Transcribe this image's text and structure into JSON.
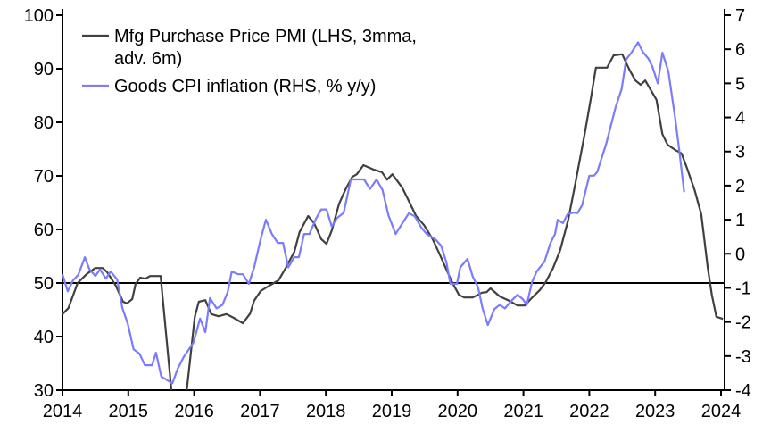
{
  "chart_data": {
    "type": "line",
    "title": "",
    "xlim": [
      2014,
      2024.2
    ],
    "x_ticks": [
      "2014",
      "2015",
      "2016",
      "2017",
      "2018",
      "2019",
      "2020",
      "2021",
      "2022",
      "2023",
      "2024"
    ],
    "y_left": {
      "lim": [
        30,
        100
      ],
      "ticks": [
        "30",
        "40",
        "50",
        "60",
        "70",
        "80",
        "90",
        "100"
      ]
    },
    "y_right": {
      "lim": [
        -4,
        7
      ],
      "ticks": [
        "-4",
        "-3",
        "-2",
        "-1",
        "0",
        "1",
        "2",
        "3",
        "4",
        "5",
        "6",
        "7"
      ]
    },
    "reference_line": {
      "axis": "left",
      "value": 50
    },
    "grid": false,
    "legend": {
      "placement": "top-left"
    },
    "series": [
      {
        "name": "Mfg Purchase Price PMI (LHS, 3mma, adv. 6m)",
        "legend_lines": [
          "Mfg Purchase Price PMI (LHS, 3mma,",
          "adv. 6m)"
        ],
        "axis": "left",
        "color": "#404040",
        "points": [
          [
            2014.0,
            44.2
          ],
          [
            2014.09,
            45.3
          ],
          [
            2014.23,
            50
          ],
          [
            2014.37,
            51.7
          ],
          [
            2014.5,
            52.8
          ],
          [
            2014.61,
            52.8
          ],
          [
            2014.68,
            52
          ],
          [
            2014.81,
            49.5
          ],
          [
            2014.92,
            46.5
          ],
          [
            2014.98,
            46.2
          ],
          [
            2015.06,
            47
          ],
          [
            2015.11,
            49.8
          ],
          [
            2015.18,
            51
          ],
          [
            2015.26,
            50.8
          ],
          [
            2015.33,
            51.3
          ],
          [
            2015.49,
            51.3
          ],
          [
            2015.67,
            28
          ],
          [
            2015.87,
            28
          ],
          [
            2016.01,
            43.7
          ],
          [
            2016.07,
            46.5
          ],
          [
            2016.17,
            46.8
          ],
          [
            2016.26,
            44.2
          ],
          [
            2016.37,
            43.8
          ],
          [
            2016.49,
            44.2
          ],
          [
            2016.6,
            43.5
          ],
          [
            2016.74,
            42.5
          ],
          [
            2016.85,
            44.3
          ],
          [
            2016.91,
            46.7
          ],
          [
            2017.01,
            48.5
          ],
          [
            2017.14,
            49.5
          ],
          [
            2017.28,
            50.5
          ],
          [
            2017.39,
            52.8
          ],
          [
            2017.52,
            55.8
          ],
          [
            2017.6,
            59.5
          ],
          [
            2017.73,
            62.5
          ],
          [
            2017.82,
            61.2
          ],
          [
            2017.93,
            58.2
          ],
          [
            2018.01,
            57.3
          ],
          [
            2018.09,
            59.8
          ],
          [
            2018.2,
            64.8
          ],
          [
            2018.3,
            67.5
          ],
          [
            2018.4,
            69.8
          ],
          [
            2018.47,
            70.3
          ],
          [
            2018.57,
            72
          ],
          [
            2018.72,
            71.2
          ],
          [
            2018.85,
            70.7
          ],
          [
            2018.93,
            69.3
          ],
          [
            2019.01,
            70.3
          ],
          [
            2019.16,
            67.8
          ],
          [
            2019.28,
            64.8
          ],
          [
            2019.37,
            62.5
          ],
          [
            2019.49,
            60.8
          ],
          [
            2019.62,
            58.2
          ],
          [
            2019.73,
            55.3
          ],
          [
            2019.82,
            52.8
          ],
          [
            2019.91,
            50.3
          ],
          [
            2020.02,
            47.8
          ],
          [
            2020.1,
            47.3
          ],
          [
            2020.23,
            47.3
          ],
          [
            2020.37,
            48.2
          ],
          [
            2020.44,
            48.3
          ],
          [
            2020.5,
            49
          ],
          [
            2020.64,
            47.5
          ],
          [
            2020.78,
            46.7
          ],
          [
            2020.91,
            45.8
          ],
          [
            2021.02,
            45.8
          ],
          [
            2021.11,
            47
          ],
          [
            2021.25,
            48.7
          ],
          [
            2021.34,
            50.2
          ],
          [
            2021.45,
            52.8
          ],
          [
            2021.56,
            56.2
          ],
          [
            2021.68,
            61.8
          ],
          [
            2021.79,
            68.7
          ],
          [
            2021.93,
            77.8
          ],
          [
            2022.02,
            84.2
          ],
          [
            2022.1,
            90.2
          ],
          [
            2022.27,
            90.2
          ],
          [
            2022.37,
            92.5
          ],
          [
            2022.5,
            92.7
          ],
          [
            2022.61,
            89.8
          ],
          [
            2022.7,
            87.8
          ],
          [
            2022.78,
            87
          ],
          [
            2022.85,
            87.8
          ],
          [
            2023.02,
            84.2
          ],
          [
            2023.11,
            77.8
          ],
          [
            2023.19,
            75.8
          ],
          [
            2023.31,
            74.8
          ],
          [
            2023.4,
            74.2
          ],
          [
            2023.49,
            71.2
          ],
          [
            2023.6,
            67.3
          ],
          [
            2023.7,
            62.8
          ],
          [
            2023.8,
            52.8
          ],
          [
            2023.86,
            47.8
          ],
          [
            2023.93,
            43.7
          ],
          [
            2024.03,
            43.3
          ]
        ]
      },
      {
        "name": "Goods CPI inflation (RHS, % y/y)",
        "legend_lines": [
          "Goods CPI inflation (RHS, % y/y)"
        ],
        "axis": "right",
        "color": "#7b7bff",
        "points": [
          [
            2014.0,
            -0.6
          ],
          [
            2014.08,
            -1.1
          ],
          [
            2014.16,
            -0.78
          ],
          [
            2014.24,
            -0.62
          ],
          [
            2014.34,
            -0.1
          ],
          [
            2014.41,
            -0.46
          ],
          [
            2014.5,
            -0.65
          ],
          [
            2014.57,
            -0.46
          ],
          [
            2014.66,
            -0.73
          ],
          [
            2014.73,
            -0.52
          ],
          [
            2014.83,
            -0.75
          ],
          [
            2014.91,
            -1.6
          ],
          [
            2014.99,
            -2.04
          ],
          [
            2015.08,
            -2.8
          ],
          [
            2015.17,
            -2.93
          ],
          [
            2015.25,
            -3.27
          ],
          [
            2015.36,
            -3.27
          ],
          [
            2015.42,
            -2.9
          ],
          [
            2015.5,
            -3.6
          ],
          [
            2015.67,
            -3.8
          ],
          [
            2015.75,
            -3.37
          ],
          [
            2015.84,
            -3.03
          ],
          [
            2015.99,
            -2.6
          ],
          [
            2016.09,
            -1.9
          ],
          [
            2016.17,
            -2.3
          ],
          [
            2016.24,
            -1.3
          ],
          [
            2016.34,
            -1.6
          ],
          [
            2016.43,
            -1.5
          ],
          [
            2016.51,
            -1.12
          ],
          [
            2016.57,
            -0.52
          ],
          [
            2016.67,
            -0.6
          ],
          [
            2016.74,
            -0.6
          ],
          [
            2016.83,
            -0.88
          ],
          [
            2016.91,
            -0.4
          ],
          [
            2017.01,
            0.43
          ],
          [
            2017.09,
            1.0
          ],
          [
            2017.18,
            0.58
          ],
          [
            2017.27,
            0.32
          ],
          [
            2017.35,
            0.32
          ],
          [
            2017.43,
            -0.4
          ],
          [
            2017.52,
            -0.1
          ],
          [
            2017.59,
            -0.1
          ],
          [
            2017.67,
            0.58
          ],
          [
            2017.75,
            0.58
          ],
          [
            2017.85,
            1.03
          ],
          [
            2017.93,
            1.3
          ],
          [
            2018.01,
            1.3
          ],
          [
            2018.09,
            0.8
          ],
          [
            2018.17,
            1.05
          ],
          [
            2018.27,
            1.2
          ],
          [
            2018.38,
            2.18
          ],
          [
            2018.43,
            2.18
          ],
          [
            2018.58,
            2.18
          ],
          [
            2018.67,
            1.9
          ],
          [
            2018.77,
            2.18
          ],
          [
            2018.86,
            1.87
          ],
          [
            2018.95,
            1.13
          ],
          [
            2019.06,
            0.58
          ],
          [
            2019.18,
            0.95
          ],
          [
            2019.26,
            1.19
          ],
          [
            2019.35,
            1.1
          ],
          [
            2019.45,
            0.77
          ],
          [
            2019.53,
            0.58
          ],
          [
            2019.66,
            0.43
          ],
          [
            2019.75,
            0.24
          ],
          [
            2019.83,
            -0.25
          ],
          [
            2019.89,
            -0.88
          ],
          [
            2019.99,
            -0.88
          ],
          [
            2020.04,
            -0.4
          ],
          [
            2020.15,
            -0.15
          ],
          [
            2020.23,
            -0.67
          ],
          [
            2020.31,
            -0.98
          ],
          [
            2020.38,
            -1.6
          ],
          [
            2020.46,
            -2.09
          ],
          [
            2020.56,
            -1.62
          ],
          [
            2020.64,
            -1.5
          ],
          [
            2020.72,
            -1.6
          ],
          [
            2020.83,
            -1.35
          ],
          [
            2020.91,
            -1.2
          ],
          [
            2020.99,
            -1.33
          ],
          [
            2021.05,
            -1.5
          ],
          [
            2021.13,
            -0.83
          ],
          [
            2021.2,
            -0.52
          ],
          [
            2021.32,
            -0.23
          ],
          [
            2021.41,
            0.32
          ],
          [
            2021.48,
            0.58
          ],
          [
            2021.52,
            1.0
          ],
          [
            2021.6,
            0.9
          ],
          [
            2021.67,
            1.16
          ],
          [
            2021.76,
            1.21
          ],
          [
            2021.82,
            1.19
          ],
          [
            2021.89,
            1.42
          ],
          [
            2022.0,
            2.29
          ],
          [
            2022.07,
            2.29
          ],
          [
            2022.12,
            2.4
          ],
          [
            2022.26,
            3.25
          ],
          [
            2022.4,
            4.3
          ],
          [
            2022.49,
            4.83
          ],
          [
            2022.56,
            5.7
          ],
          [
            2022.64,
            5.9
          ],
          [
            2022.74,
            6.2
          ],
          [
            2022.81,
            5.93
          ],
          [
            2022.9,
            5.72
          ],
          [
            2022.96,
            5.48
          ],
          [
            2023.04,
            5.0
          ],
          [
            2023.11,
            5.9
          ],
          [
            2023.2,
            5.35
          ],
          [
            2023.3,
            4.04
          ],
          [
            2023.36,
            3.12
          ],
          [
            2023.44,
            1.81
          ]
        ]
      }
    ]
  }
}
